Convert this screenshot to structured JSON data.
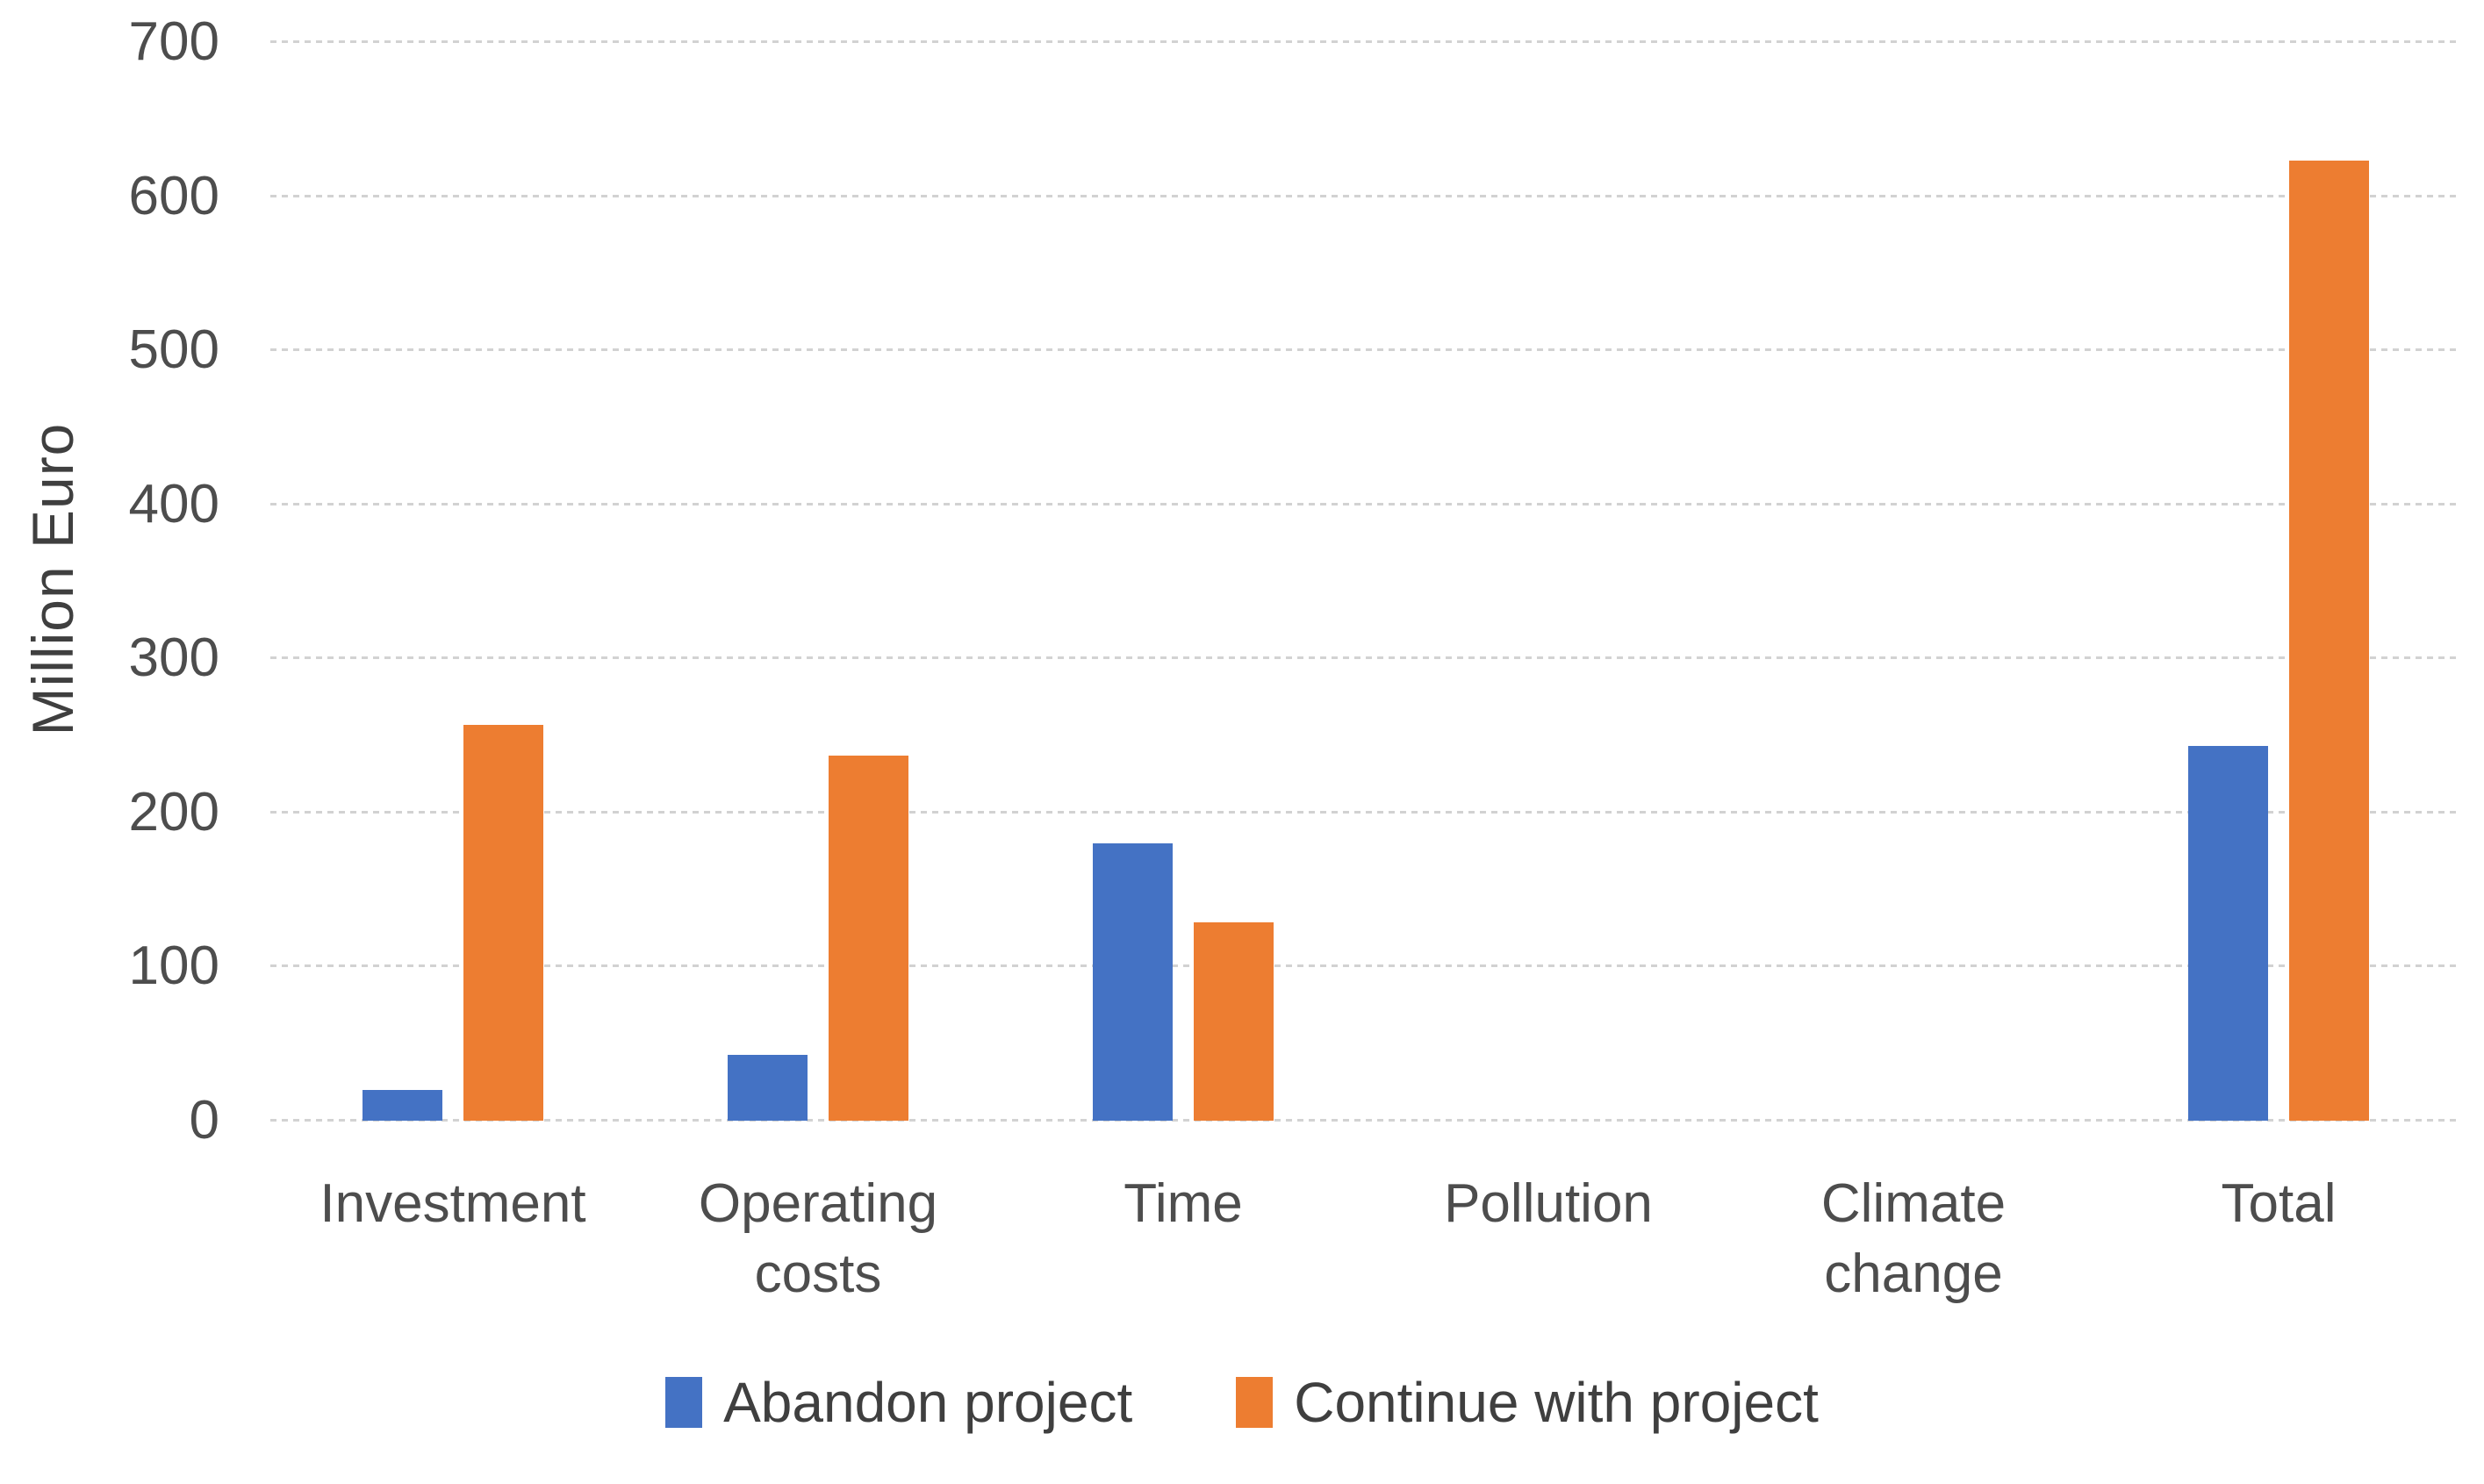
{
  "chart_data": {
    "type": "bar",
    "title": "",
    "xlabel": "",
    "ylabel": "Million Euro",
    "categories": [
      "Investment",
      "Operating costs",
      "Time",
      "Pollution",
      "Climate change",
      "Total"
    ],
    "series": [
      {
        "name": "Abandon project",
        "color": "#4472C4",
        "values": [
          20,
          43,
          180,
          0,
          0,
          243
        ]
      },
      {
        "name": "Continue with project",
        "color": "#ED7D31",
        "values": [
          257,
          237,
          129,
          0,
          0,
          623
        ]
      }
    ],
    "ylim": [
      0,
      700
    ],
    "yticks": [
      0,
      100,
      200,
      300,
      400,
      500,
      600,
      700
    ],
    "grid": "horizontal-dashed",
    "legend_position": "bottom"
  },
  "colors": {
    "background": "#FFFFFF",
    "gridline": "#D2D2D2",
    "axis_text": "#4D4D4D"
  }
}
